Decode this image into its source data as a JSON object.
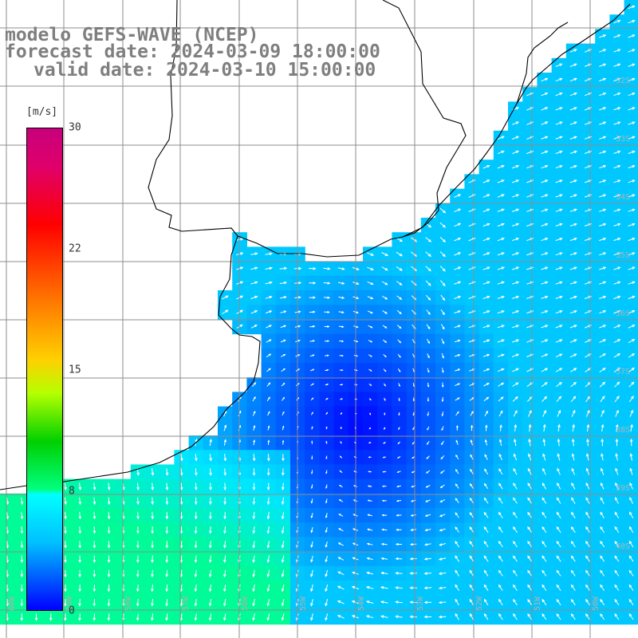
{
  "title": {
    "model": "modelo GEFS-WAVE (NCEP)",
    "forecast": "forecast date: 2024-03-09 18:00:00",
    "valid": "valid date: 2024-03-10 15:00:00"
  },
  "colorbar": {
    "units": "[m/s]",
    "ticks": [
      "30",
      "22",
      "15",
      "8",
      "0"
    ],
    "tick_values": [
      30,
      22,
      15,
      8,
      0
    ],
    "range": [
      0,
      30
    ]
  },
  "grid": {
    "lat_labels": [
      "32S",
      "33S",
      "34S",
      "35S",
      "36S",
      "37S",
      "38S",
      "39S",
      "40S"
    ],
    "lon_labels": [
      "60W",
      "59W",
      "58W",
      "57W",
      "56W",
      "55W",
      "54W",
      "53W",
      "52W",
      "51W",
      "50W"
    ]
  },
  "colors": {
    "land": "#ffffff",
    "grid": "#8c8c8c",
    "coast": "#000000",
    "arrow": "#ffffff",
    "title_text": "#7f7f7f"
  },
  "field": {
    "variable": "wind",
    "units": "m/s",
    "calm_center_speed": 0,
    "offshore_speed": 7,
    "southwest_speed": 10
  }
}
